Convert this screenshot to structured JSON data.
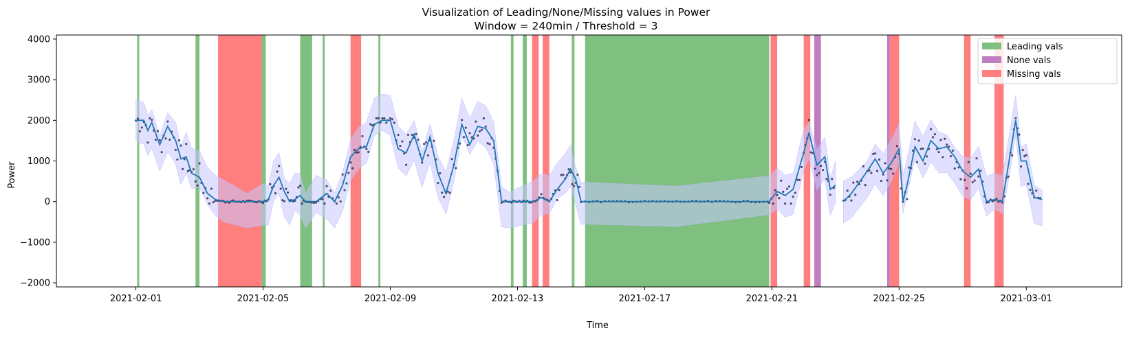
{
  "chart_data": {
    "type": "line",
    "title": "Visualization of Leading/None/Missing values in Power",
    "subtitle": "Window = 240min / Threshold = 3",
    "xlabel": "Time",
    "ylabel": "Power",
    "xlim": [
      "2021-01-29T12:00",
      "2021-03-04T00:00"
    ],
    "ylim": [
      -2100,
      4100
    ],
    "xticks": [
      "2021-02-01",
      "2021-02-05",
      "2021-02-09",
      "2021-02-13",
      "2021-02-17",
      "2021-02-21",
      "2021-02-25",
      "2021-03-01"
    ],
    "yticks": [
      -2000,
      -1000,
      0,
      1000,
      2000,
      3000,
      4000
    ],
    "grid": false,
    "legend_position": "top-right",
    "legend": [
      {
        "label": "Leading vals",
        "color": "#7fbf7f"
      },
      {
        "label": "None vals",
        "color": "#bf7fbf"
      },
      {
        "label": "Missing vals",
        "color": "#ff7f7f"
      }
    ],
    "spans": {
      "leading": [
        [
          "2021-02-01T01:00",
          "2021-02-01T02:30"
        ],
        [
          "2021-02-02T21:00",
          "2021-02-03T00:00"
        ],
        [
          "2021-02-04T23:00",
          "2021-02-05T02:00"
        ],
        [
          "2021-02-06T04:00",
          "2021-02-06T13:00"
        ],
        [
          "2021-02-06T21:00",
          "2021-02-06T22:30"
        ],
        [
          "2021-02-08T15:00",
          "2021-02-08T16:30"
        ],
        [
          "2021-02-12T19:00",
          "2021-02-12T21:00"
        ],
        [
          "2021-02-13T04:00",
          "2021-02-13T07:00"
        ],
        [
          "2021-02-14T17:00",
          "2021-02-14T19:00"
        ],
        [
          "2021-02-15T03:00",
          "2021-02-20T22:00"
        ]
      ],
      "none": [
        [
          "2021-02-22T08:00",
          "2021-02-22T13:00"
        ],
        [
          "2021-02-24T15:00",
          "2021-02-24T17:00"
        ]
      ],
      "missing": [
        [
          "2021-02-03T14:00",
          "2021-02-04T23:00"
        ],
        [
          "2021-02-07T18:00",
          "2021-02-08T02:00"
        ],
        [
          "2021-02-13T11:00",
          "2021-02-13T16:00"
        ],
        [
          "2021-02-13T19:00",
          "2021-02-14T00:00"
        ],
        [
          "2021-02-20T23:00",
          "2021-02-21T04:00"
        ],
        [
          "2021-02-22T00:00",
          "2021-02-22T05:00"
        ],
        [
          "2021-02-24T17:00",
          "2021-02-25T00:00"
        ],
        [
          "2021-02-27T01:00",
          "2021-02-27T06:00"
        ],
        [
          "2021-02-28T00:00",
          "2021-02-28T07:00"
        ]
      ]
    },
    "series": [
      {
        "name": "Power (rolling mean)",
        "color": "#1f77b4",
        "segments": [
          [
            [
              "2021-02-01T00:00",
              2000
            ],
            [
              "2021-02-01T06:00",
              2000
            ],
            [
              "2021-02-01T09:00",
              1750
            ],
            [
              "2021-02-01T12:00",
              1950
            ],
            [
              "2021-02-01T18:00",
              1400
            ],
            [
              "2021-02-02T00:00",
              1850
            ],
            [
              "2021-02-02T06:00",
              1500
            ],
            [
              "2021-02-02T10:00",
              1050
            ],
            [
              "2021-02-02T14:00",
              1100
            ],
            [
              "2021-02-02T18:00",
              700
            ],
            [
              "2021-02-03T00:00",
              600
            ],
            [
              "2021-02-03T06:00",
              200
            ],
            [
              "2021-02-03T12:00",
              50
            ],
            [
              "2021-02-03T18:00",
              0
            ],
            [
              "2021-02-04T12:00",
              0
            ],
            [
              "2021-02-05T00:00",
              0
            ],
            [
              "2021-02-05T04:00",
              50
            ],
            [
              "2021-02-05T08:00",
              400
            ],
            [
              "2021-02-05T12:00",
              600
            ],
            [
              "2021-02-05T16:00",
              250
            ],
            [
              "2021-02-05T20:00",
              0
            ],
            [
              "2021-02-06T00:00",
              50
            ],
            [
              "2021-02-06T04:00",
              150
            ],
            [
              "2021-02-06T08:00",
              0
            ],
            [
              "2021-02-06T16:00",
              0
            ],
            [
              "2021-02-07T00:00",
              200
            ],
            [
              "2021-02-07T06:00",
              0
            ],
            [
              "2021-02-07T12:00",
              400
            ],
            [
              "2021-02-07T18:00",
              1100
            ],
            [
              "2021-02-08T00:00",
              1300
            ],
            [
              "2021-02-08T06:00",
              1350
            ],
            [
              "2021-02-08T12:00",
              1900
            ],
            [
              "2021-02-08T18:00",
              2000
            ],
            [
              "2021-02-09T00:00",
              2000
            ],
            [
              "2021-02-09T06:00",
              1300
            ],
            [
              "2021-02-09T12:00",
              1200
            ],
            [
              "2021-02-09T18:00",
              1650
            ],
            [
              "2021-02-10T00:00",
              1000
            ],
            [
              "2021-02-10T06:00",
              1600
            ],
            [
              "2021-02-10T12:00",
              700
            ],
            [
              "2021-02-10T18:00",
              200
            ],
            [
              "2021-02-11T00:00",
              900
            ],
            [
              "2021-02-11T06:00",
              1900
            ],
            [
              "2021-02-11T12:00",
              1400
            ],
            [
              "2021-02-11T18:00",
              1850
            ],
            [
              "2021-02-12T00:00",
              1800
            ],
            [
              "2021-02-12T06:00",
              1500
            ],
            [
              "2021-02-12T12:00",
              0
            ],
            [
              "2021-02-12T18:00",
              0
            ],
            [
              "2021-02-13T12:00",
              0
            ],
            [
              "2021-02-13T18:00",
              100
            ],
            [
              "2021-02-14T00:00",
              0
            ],
            [
              "2021-02-14T06:00",
              300
            ],
            [
              "2021-02-14T12:00",
              550
            ],
            [
              "2021-02-14T16:00",
              800
            ],
            [
              "2021-02-14T20:00",
              550
            ],
            [
              "2021-02-15T00:00",
              0
            ],
            [
              "2021-02-18T00:00",
              0
            ],
            [
              "2021-02-20T22:00",
              0
            ],
            [
              "2021-02-21T04:00",
              250
            ],
            [
              "2021-02-21T10:00",
              150
            ],
            [
              "2021-02-21T16:00",
              300
            ],
            [
              "2021-02-22T00:00",
              1200
            ],
            [
              "2021-02-22T04:00",
              1700
            ],
            [
              "2021-02-22T10:00",
              900
            ],
            [
              "2021-02-22T16:00",
              1100
            ],
            [
              "2021-02-22T20:00",
              300
            ],
            [
              "2021-02-23T00:00",
              400
            ]
          ],
          [
            [
              "2021-02-23T06:00",
              0
            ],
            [
              "2021-02-23T12:00",
              200
            ],
            [
              "2021-02-24T00:00",
              750
            ],
            [
              "2021-02-24T06:00",
              1050
            ],
            [
              "2021-02-24T12:00",
              700
            ],
            [
              "2021-02-24T18:00",
              950
            ],
            [
              "2021-02-25T00:00",
              1300
            ],
            [
              "2021-02-25T03:00",
              0
            ],
            [
              "2021-02-25T06:00",
              400
            ],
            [
              "2021-02-25T12:00",
              1350
            ],
            [
              "2021-02-25T18:00",
              1000
            ],
            [
              "2021-02-26T00:00",
              1500
            ],
            [
              "2021-02-26T06:00",
              1300
            ],
            [
              "2021-02-26T12:00",
              1350
            ],
            [
              "2021-02-26T18:00",
              1100
            ],
            [
              "2021-02-27T00:00",
              750
            ],
            [
              "2021-02-27T06:00",
              600
            ],
            [
              "2021-02-27T12:00",
              800
            ],
            [
              "2021-02-27T18:00",
              0
            ],
            [
              "2021-02-28T00:00",
              50
            ],
            [
              "2021-02-28T06:00",
              0
            ],
            [
              "2021-02-28T12:00",
              1200
            ],
            [
              "2021-02-28T16:00",
              2000
            ],
            [
              "2021-02-28T20:00",
              1000
            ],
            [
              "2021-03-01T00:00",
              1000
            ],
            [
              "2021-03-01T06:00",
              100
            ],
            [
              "2021-03-01T12:00",
              50
            ]
          ]
        ]
      }
    ],
    "band": {
      "name": "Confidence band",
      "color": "#c8c8ff",
      "approx_halfwidth": 500
    },
    "scatter": {
      "name": "Raw values",
      "color": "#1a1a3a",
      "approx_count": 480,
      "jitter": 350
    }
  }
}
